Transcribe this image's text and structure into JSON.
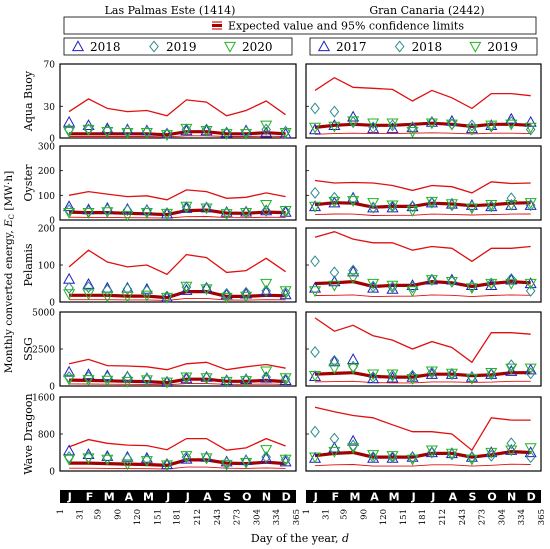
{
  "figure": {
    "site_titles": [
      "Las Palmas Este (1414)",
      "Gran Canaria (2442)"
    ],
    "confidence_legend_label": "Expected value and 95% confidence limits",
    "y_axis_label_text": "Monthly converted energy, E_C [MW·h]",
    "x_axis_label_text": "Day of the year, d",
    "months": [
      "J",
      "F",
      "M",
      "A",
      "M",
      "J",
      "J",
      "A",
      "S",
      "O",
      "N",
      "D"
    ],
    "colors": {
      "blue": "#1f1fbf",
      "green": "#22b422",
      "teal": "#2e8b8b",
      "red": "#e01010",
      "darkred": "#a00000"
    }
  },
  "chart_data": {
    "type": "scatter",
    "x_ticks": [
      1,
      31,
      59,
      90,
      120,
      151,
      181,
      212,
      243,
      273,
      304,
      334,
      365
    ],
    "x_days": [
      15,
      45,
      74,
      105,
      135,
      166,
      196,
      227,
      258,
      288,
      319,
      349
    ],
    "converters": [
      {
        "name": "Aqua Buoy",
        "ylim": [
          0,
          70
        ],
        "yticks": [
          0,
          30,
          70
        ]
      },
      {
        "name": "Oyster",
        "ylim": [
          0,
          300
        ],
        "yticks": [
          0,
          100,
          200,
          300
        ]
      },
      {
        "name": "Pelamis",
        "ylim": [
          0,
          200
        ],
        "yticks": [
          0,
          100,
          200
        ]
      },
      {
        "name": "SSG",
        "ylim": [
          0,
          5000
        ],
        "yticks": [
          0,
          2500,
          5000
        ]
      },
      {
        "name": "Wave Dragoon",
        "ylim": [
          0,
          1600
        ],
        "yticks": [
          0,
          800,
          1600
        ]
      }
    ],
    "panels": [
      {
        "site": "Las Palmas Este (1414)",
        "legend": [
          {
            "year": "2018",
            "marker": "triangle-up",
            "color": "#1f1fbf"
          },
          {
            "year": "2019",
            "marker": "diamond",
            "color": "#2e8b8b"
          },
          {
            "year": "2020",
            "marker": "triangle-down",
            "color": "#22b422"
          }
        ],
        "rows": [
          {
            "converter": "Aqua Buoy",
            "expected": [
              4,
              4,
              4,
              4,
              4,
              3,
              6,
              6,
              4,
              4,
              5,
              4
            ],
            "upper": [
              25,
              37,
              28,
              25,
              26,
              21,
              36,
              34,
              21,
              26,
              35,
              22
            ],
            "series": [
              [
                15,
                12,
                9,
                8,
                7,
                4,
                7,
                7,
                5,
                7,
                5,
                4
              ],
              [
                8,
                8,
                7,
                7,
                6,
                4,
                8,
                8,
                5,
                6,
                8,
                6
              ],
              [
                6,
                8,
                6,
                5,
                5,
                3,
                9,
                7,
                4,
                4,
                12,
                5
              ]
            ]
          },
          {
            "converter": "Oyster",
            "expected": [
              32,
              30,
              30,
              27,
              25,
              22,
              38,
              40,
              28,
              27,
              32,
              30
            ],
            "upper": [
              100,
              115,
              105,
              95,
              98,
              82,
              122,
              115,
              88,
              92,
              110,
              95
            ],
            "series": [
              [
                55,
                42,
                48,
                44,
                40,
                25,
                48,
                50,
                32,
                33,
                38,
                32
              ],
              [
                40,
                35,
                42,
                40,
                38,
                28,
                52,
                50,
                30,
                32,
                38,
                35
              ],
              [
                30,
                30,
                33,
                18,
                30,
                26,
                55,
                48,
                25,
                30,
                62,
                38
              ]
            ]
          },
          {
            "converter": "Pelamis",
            "expected": [
              18,
              18,
              18,
              16,
              16,
              12,
              28,
              28,
              15,
              15,
              18,
              17
            ],
            "upper": [
              95,
              140,
              108,
              95,
              100,
              75,
              128,
              120,
              80,
              85,
              118,
              82
            ],
            "series": [
              [
                62,
                48,
                38,
                38,
                35,
                12,
                32,
                38,
                20,
                22,
                28,
                20
              ],
              [
                38,
                40,
                32,
                35,
                30,
                15,
                40,
                38,
                22,
                25,
                30,
                25
              ],
              [
                22,
                22,
                15,
                15,
                18,
                12,
                42,
                35,
                12,
                15,
                50,
                30
              ]
            ]
          },
          {
            "converter": "SSG",
            "expected": [
              400,
              380,
              350,
              320,
              300,
              230,
              460,
              460,
              320,
              320,
              380,
              300
            ],
            "upper": [
              1500,
              1800,
              1380,
              1350,
              1300,
              1100,
              1500,
              1600,
              1100,
              1300,
              1450,
              1200
            ],
            "series": [
              [
                950,
                780,
                700,
                620,
                520,
                260,
                500,
                600,
                380,
                450,
                540,
                380
              ],
              [
                600,
                600,
                580,
                580,
                480,
                280,
                550,
                550,
                350,
                420,
                600,
                450
              ],
              [
                450,
                420,
                380,
                300,
                400,
                250,
                600,
                550,
                300,
                350,
                1000,
                550
              ]
            ]
          },
          {
            "converter": "Wave Dragoon",
            "expected": [
              170,
              170,
              160,
              150,
              140,
              120,
              240,
              240,
              170,
              160,
              190,
              160
            ],
            "upper": [
              520,
              680,
              600,
              560,
              550,
              460,
              700,
              700,
              450,
              500,
              700,
              540
            ],
            "series": [
              [
                440,
                360,
                320,
                300,
                280,
                140,
                260,
                300,
                200,
                230,
                280,
                200
              ],
              [
                300,
                300,
                280,
                270,
                240,
                150,
                300,
                280,
                180,
                220,
                300,
                240
              ],
              [
                250,
                280,
                250,
                150,
                220,
                130,
                330,
                280,
                140,
                180,
                460,
                250
              ]
            ]
          }
        ]
      },
      {
        "site": "Gran Canaria (2442)",
        "legend": [
          {
            "year": "2017",
            "marker": "triangle-up",
            "color": "#1f1fbf"
          },
          {
            "year": "2018",
            "marker": "diamond",
            "color": "#2e8b8b"
          },
          {
            "year": "2019",
            "marker": "triangle-down",
            "color": "#22b422"
          }
        ],
        "rows": [
          {
            "converter": "Aqua Buoy",
            "expected": [
              10,
              12,
              13,
              12,
              12,
              13,
              14,
              13,
              11,
              13,
              13,
              12
            ],
            "upper": [
              45,
              57,
              48,
              47,
              46,
              35,
              45,
              38,
              28,
              42,
              42,
              40
            ],
            "series": [
              [
                8,
                12,
                20,
                9,
                9,
                10,
                15,
                16,
                9,
                12,
                18,
                15
              ],
              [
                28,
                25,
                15,
                10,
                12,
                10,
                15,
                13,
                12,
                11,
                15,
                8
              ],
              [
                10,
                11,
                16,
                14,
                14,
                6,
                14,
                13,
                8,
                12,
                13,
                10
              ]
            ]
          },
          {
            "converter": "Oyster",
            "expected": [
              62,
              70,
              68,
              52,
              55,
              55,
              68,
              65,
              58,
              62,
              68,
              70
            ],
            "upper": [
              160,
              150,
              152,
              150,
              140,
              120,
              140,
              135,
              110,
              155,
              148,
              150
            ],
            "series": [
              [
                55,
                70,
                90,
                50,
                50,
                55,
                70,
                65,
                60,
                55,
                60,
                60
              ],
              [
                110,
                90,
                85,
                50,
                55,
                55,
                70,
                60,
                55,
                55,
                88,
                60
              ],
              [
                55,
                75,
                78,
                70,
                60,
                38,
                75,
                65,
                48,
                62,
                62,
                70
              ]
            ]
          },
          {
            "converter": "Pelamis",
            "expected": [
              50,
              52,
              55,
              42,
              45,
              45,
              55,
              52,
              42,
              50,
              55,
              52
            ],
            "upper": [
              175,
              190,
              170,
              160,
              160,
              140,
              150,
              145,
              110,
              145,
              145,
              150
            ],
            "series": [
              [
                38,
                55,
                82,
                38,
                35,
                45,
                60,
                60,
                45,
                45,
                60,
                50
              ],
              [
                110,
                80,
                85,
                42,
                40,
                40,
                60,
                55,
                42,
                50,
                62,
                30
              ],
              [
                30,
                45,
                65,
                50,
                45,
                30,
                60,
                55,
                38,
                50,
                50,
                50
              ]
            ]
          },
          {
            "converter": "SSG",
            "expected": [
              800,
              850,
              900,
              650,
              600,
              600,
              800,
              800,
              700,
              750,
              900,
              900
            ],
            "upper": [
              4600,
              3700,
              4100,
              3400,
              3100,
              2500,
              3000,
              2600,
              1600,
              3600,
              3600,
              3500
            ],
            "series": [
              [
                650,
                1650,
                1800,
                500,
                550,
                600,
                800,
                800,
                600,
                800,
                1000,
                1100
              ],
              [
                2300,
                1700,
                1300,
                600,
                700,
                700,
                900,
                800,
                600,
                800,
                1400,
                850
              ],
              [
                700,
                1200,
                1200,
                800,
                800,
                500,
                1000,
                850,
                500,
                900,
                1200,
                1200
              ]
            ]
          },
          {
            "converter": "Wave Dragoon",
            "expected": [
              330,
              380,
              400,
              300,
              300,
              300,
              380,
              380,
              300,
              350,
              420,
              400
            ],
            "upper": [
              1380,
              1280,
              1200,
              1150,
              1000,
              850,
              850,
              800,
              450,
              1150,
              1100,
              1100
            ],
            "series": [
              [
                280,
                500,
                650,
                280,
                280,
                300,
                400,
                380,
                300,
                400,
                450,
                400
              ],
              [
                850,
                700,
                550,
                300,
                300,
                300,
                400,
                360,
                300,
                330,
                600,
                300
              ],
              [
                300,
                420,
                500,
                350,
                330,
                250,
                450,
                380,
                250,
                400,
                450,
                500
              ]
            ]
          }
        ]
      }
    ]
  }
}
